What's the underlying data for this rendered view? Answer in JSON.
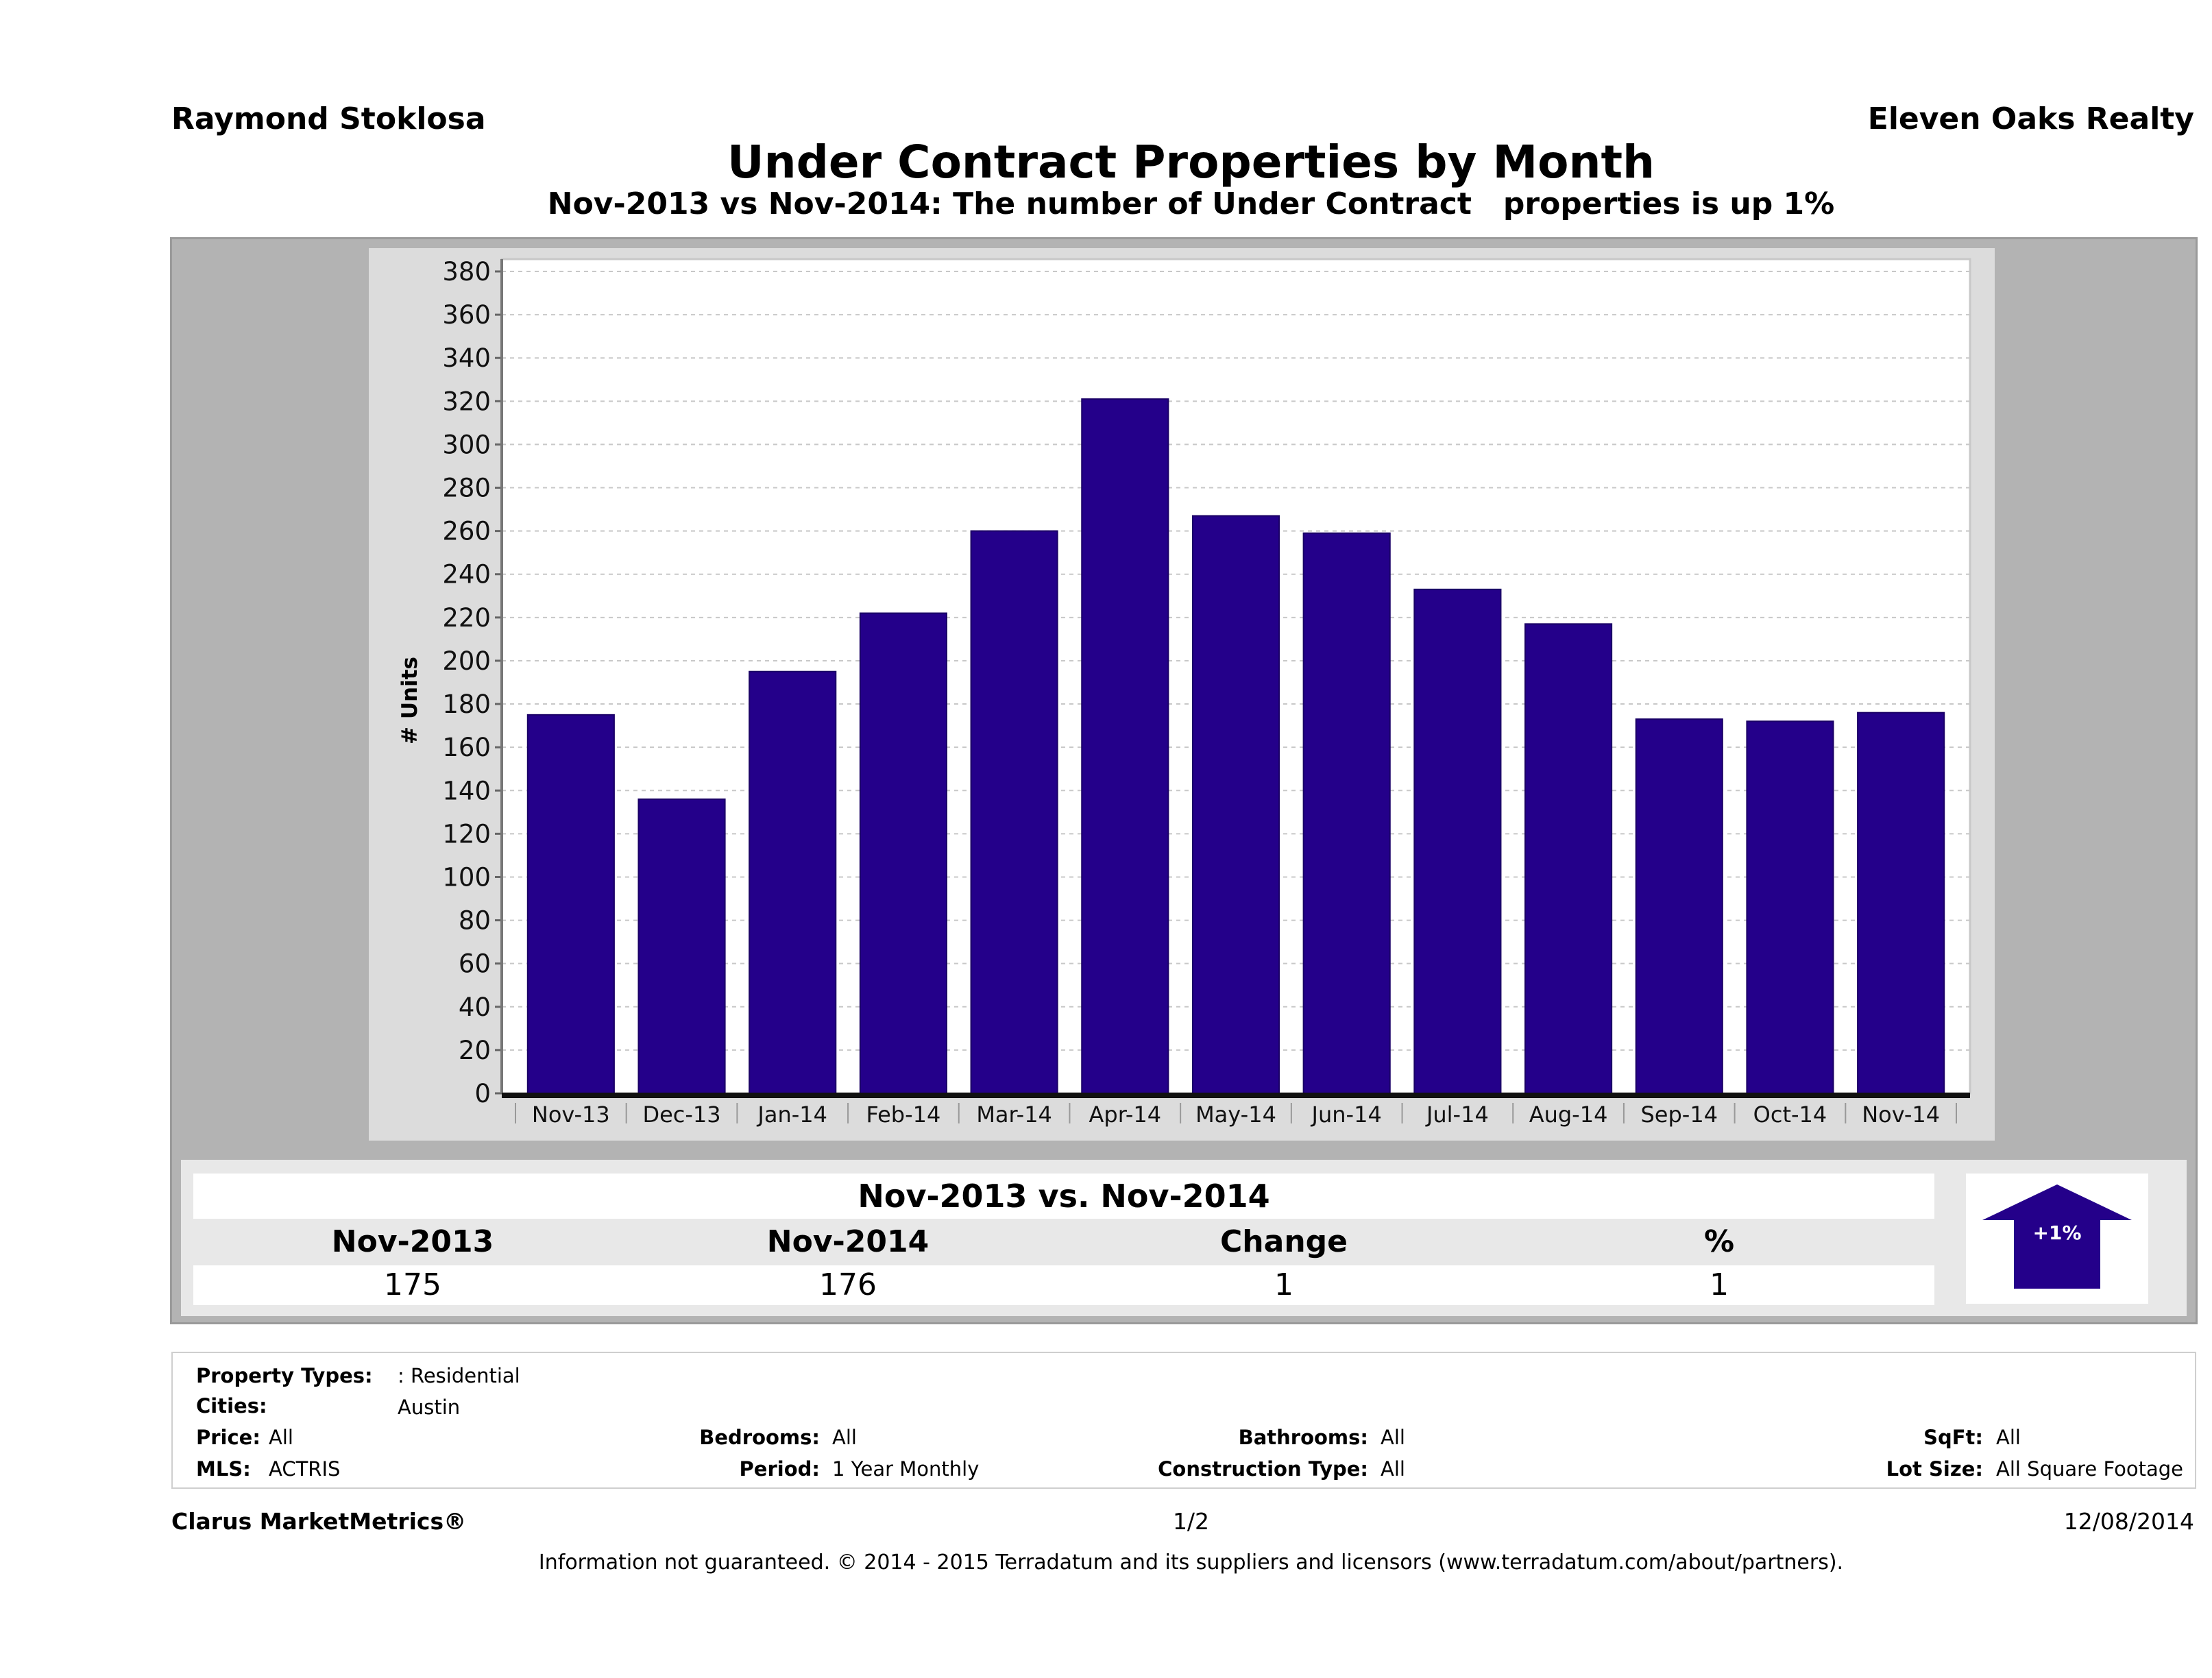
{
  "header": {
    "agent_name": "Raymond Stoklosa",
    "brokerage": "Eleven Oaks Realty",
    "title": "Under Contract Properties by Month",
    "subtitle": "Nov-2013 vs Nov-2014: The number of Under Contract   properties is up 1%"
  },
  "chart_data": {
    "type": "bar",
    "title": "Under Contract Properties by Month",
    "xlabel": "",
    "ylabel": "# Units",
    "ylim": [
      0,
      380
    ],
    "ytick_step": 20,
    "yticks": [
      0,
      20,
      40,
      60,
      80,
      100,
      120,
      140,
      160,
      180,
      200,
      220,
      240,
      260,
      280,
      300,
      320,
      340,
      360,
      380
    ],
    "grid": true,
    "legend": "none",
    "categories": [
      "Nov-13",
      "Dec-13",
      "Jan-14",
      "Feb-14",
      "Mar-14",
      "Apr-14",
      "May-14",
      "Jun-14",
      "Jul-14",
      "Aug-14",
      "Sep-14",
      "Oct-14",
      "Nov-14"
    ],
    "values": [
      175,
      136,
      195,
      222,
      260,
      321,
      267,
      259,
      233,
      217,
      173,
      172,
      176
    ],
    "bar_color": "#24008a"
  },
  "comparison": {
    "title": "Nov-2013 vs. Nov-2014",
    "headers": [
      "Nov-2013",
      "Nov-2014",
      "Change",
      "%"
    ],
    "values": [
      "175",
      "176",
      "1",
      "1"
    ],
    "indicator_label": "+1%",
    "indicator_direction": "up",
    "indicator_color": "#24008a"
  },
  "criteria": {
    "property_types_label": "Property Types:",
    "property_types_value": ": Residential",
    "cities_label": "Cities:",
    "cities_value": "Austin",
    "price_label": "Price:",
    "price_value": "All",
    "mls_label": "MLS:",
    "mls_value": "ACTRIS",
    "bedrooms_label": "Bedrooms:",
    "bedrooms_value": "All",
    "period_label": "Period:",
    "period_value": "1 Year Monthly",
    "bathrooms_label": "Bathrooms:",
    "bathrooms_value": "All",
    "construction_label": "Construction Type:",
    "construction_value": "All",
    "sqft_label": "SqFt:",
    "sqft_value": "All",
    "lot_size_label": "Lot Size:",
    "lot_size_value": "All Square Footage"
  },
  "footer": {
    "product": "Clarus MarketMetrics®",
    "page": "1/2",
    "date": "12/08/2014",
    "disclaimer": "Information not guaranteed. © 2014 - 2015 Terradatum and its suppliers and licensors (www.terradatum.com/about/partners)."
  }
}
